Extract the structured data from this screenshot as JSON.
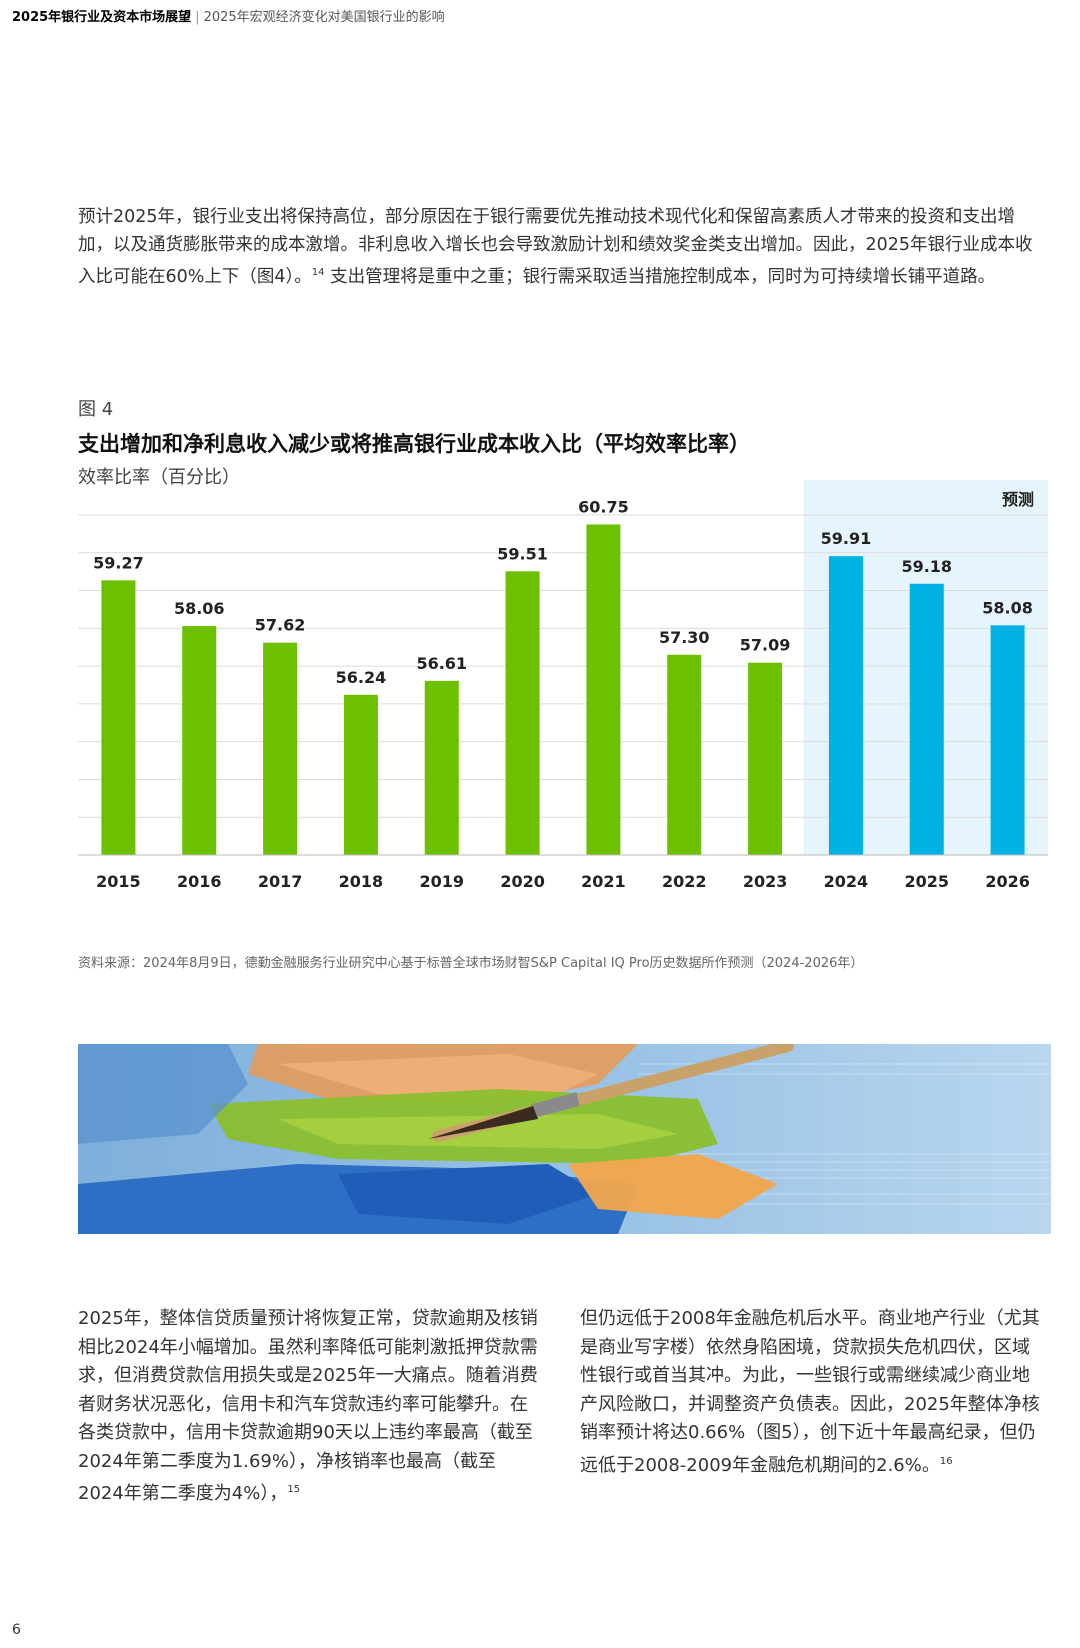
{
  "header": {
    "report_title": "2025年银行业及资本市场展望",
    "separator": "|",
    "section_title": "2025年宏观经济变化对美国银行业的影响"
  },
  "intro_paragraph": {
    "text_before_ref": "预计2025年，银行业支出将保持高位，部分原因在于银行需要优先推动技术现代化和保留高素质人才带来的投资和支出增加，以及通货膨胀带来的成本激增。非利息收入增长也会导致激励计划和绩效奖金类支出增加。因此，2025年银行业成本收入比可能在60%上下（图4）。",
    "ref": "14",
    "text_after_ref": "支出管理将是重中之重；银行需采取适当措施控制成本，同时为可持续增长铺平道路。"
  },
  "figure": {
    "label": "图 4",
    "title": "支出增加和净利息收入减少或将推高银行业成本收入比（平均效率比率）",
    "ylabel": "效率比率（百分比）",
    "source": "资料来源：2024年8月9日，德勤金融服务行业研究中心基于标普全球市场财智S&P Capital IQ Pro历史数据所作预测（2024-2026年）"
  },
  "chart_data": {
    "type": "bar",
    "title": "支出增加和净利息收入减少或将推高银行业成本收入比（平均效率比率）",
    "ylabel": "效率比率（百分比）",
    "categories": [
      "2015",
      "2016",
      "2017",
      "2018",
      "2019",
      "2020",
      "2021",
      "2022",
      "2023",
      "2024",
      "2025",
      "2026"
    ],
    "values": [
      59.27,
      58.06,
      57.62,
      56.24,
      56.61,
      59.51,
      60.75,
      57.3,
      57.09,
      59.91,
      59.18,
      58.08
    ],
    "value_labels": [
      "59.27",
      "58.06",
      "57.62",
      "56.24",
      "56.61",
      "59.51",
      "60.75",
      "57.30",
      "57.09",
      "59.91",
      "59.18",
      "58.08"
    ],
    "forecast_label": "预测",
    "forecast_start_index": 9,
    "ylim": [
      52,
      61
    ],
    "grid": true,
    "colors": {
      "historical": "#6cc000",
      "forecast": "#00b2e3",
      "forecast_bg": "#e6f5fb",
      "grid": "#dcdcdc"
    }
  },
  "body_columns": {
    "left": {
      "text_before_ref": "2025年，整体信贷质量预计将恢复正常，贷款逾期及核销相比2024年小幅增加。虽然利率降低可能刺激抵押贷款需求，但消费贷款信用损失或是2025年一大痛点。随着消费者财务状况恶化，信用卡和汽车贷款违约率可能攀升。在各类贷款中，信用卡贷款逾期90天以上违约率最高（截至2024年第二季度为1.69%），净核销率也最高（截至2024年第二季度为4%），",
      "ref": "15"
    },
    "right": {
      "text_before_ref": "但仍远低于2008年金融危机后水平。商业地产行业（尤其是商业写字楼）依然身陷困境，贷款损失危机四伏，区域性银行或首当其冲。为此，一些银行或需继续减少商业地产风险敞口，并调整资产负债表。因此，2025年整体净核销率预计将达0.66%（图5），创下近十年最高纪录，但仍远低于2008-2009年金融危机期间的2.6%。",
      "ref": "16"
    }
  },
  "page_number": "6"
}
